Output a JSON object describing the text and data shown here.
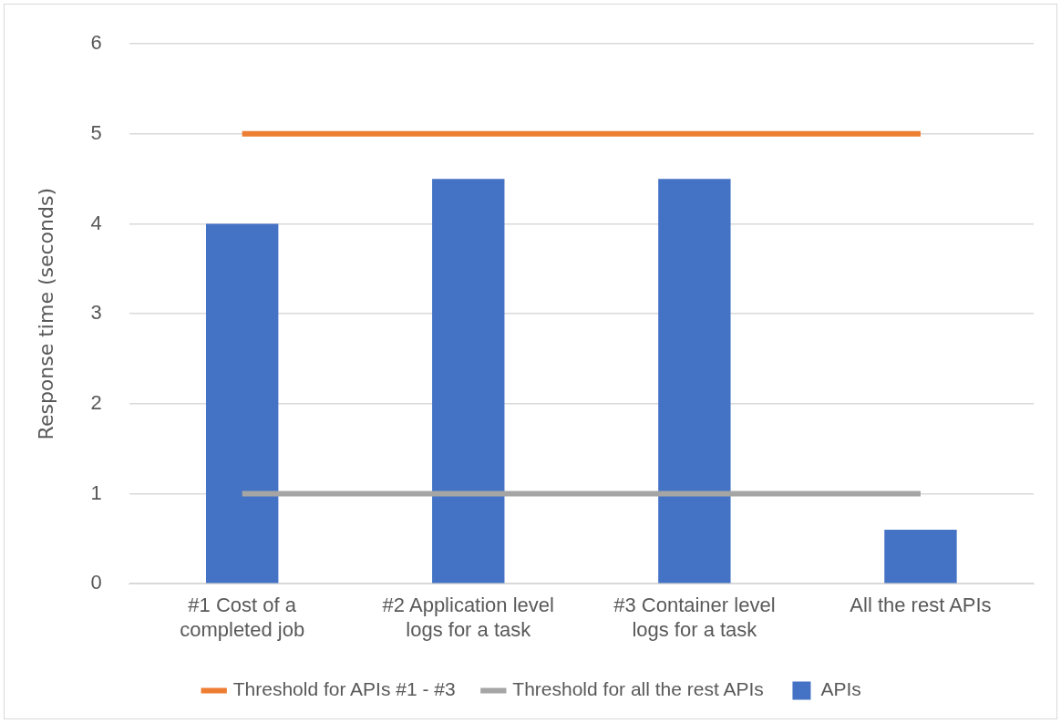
{
  "chart_data": {
    "type": "bar",
    "ylabel": "Response time (seconds)",
    "categories": [
      "#1 Cost of a completed job",
      "#2 Application level logs for a task",
      "#3 Container level logs for a task",
      "All the rest APIs"
    ],
    "ylim": [
      0,
      6
    ],
    "yticks": [
      0,
      1,
      2,
      3,
      4,
      5,
      6
    ],
    "grid": "y",
    "legend": "bottom",
    "series": [
      {
        "name": "APIs",
        "color": "#4472c4",
        "values": [
          4,
          4.5,
          4.5,
          0.6
        ]
      },
      {
        "name": "Threshold for APIs #1 - #3",
        "type": "line",
        "color": "#ed7d31",
        "values": [
          5,
          5,
          5,
          5
        ]
      },
      {
        "name": "Threshold for all the rest APIs",
        "type": "line",
        "color": "#a5a5a5",
        "values": [
          1,
          1,
          1,
          1
        ]
      }
    ]
  }
}
